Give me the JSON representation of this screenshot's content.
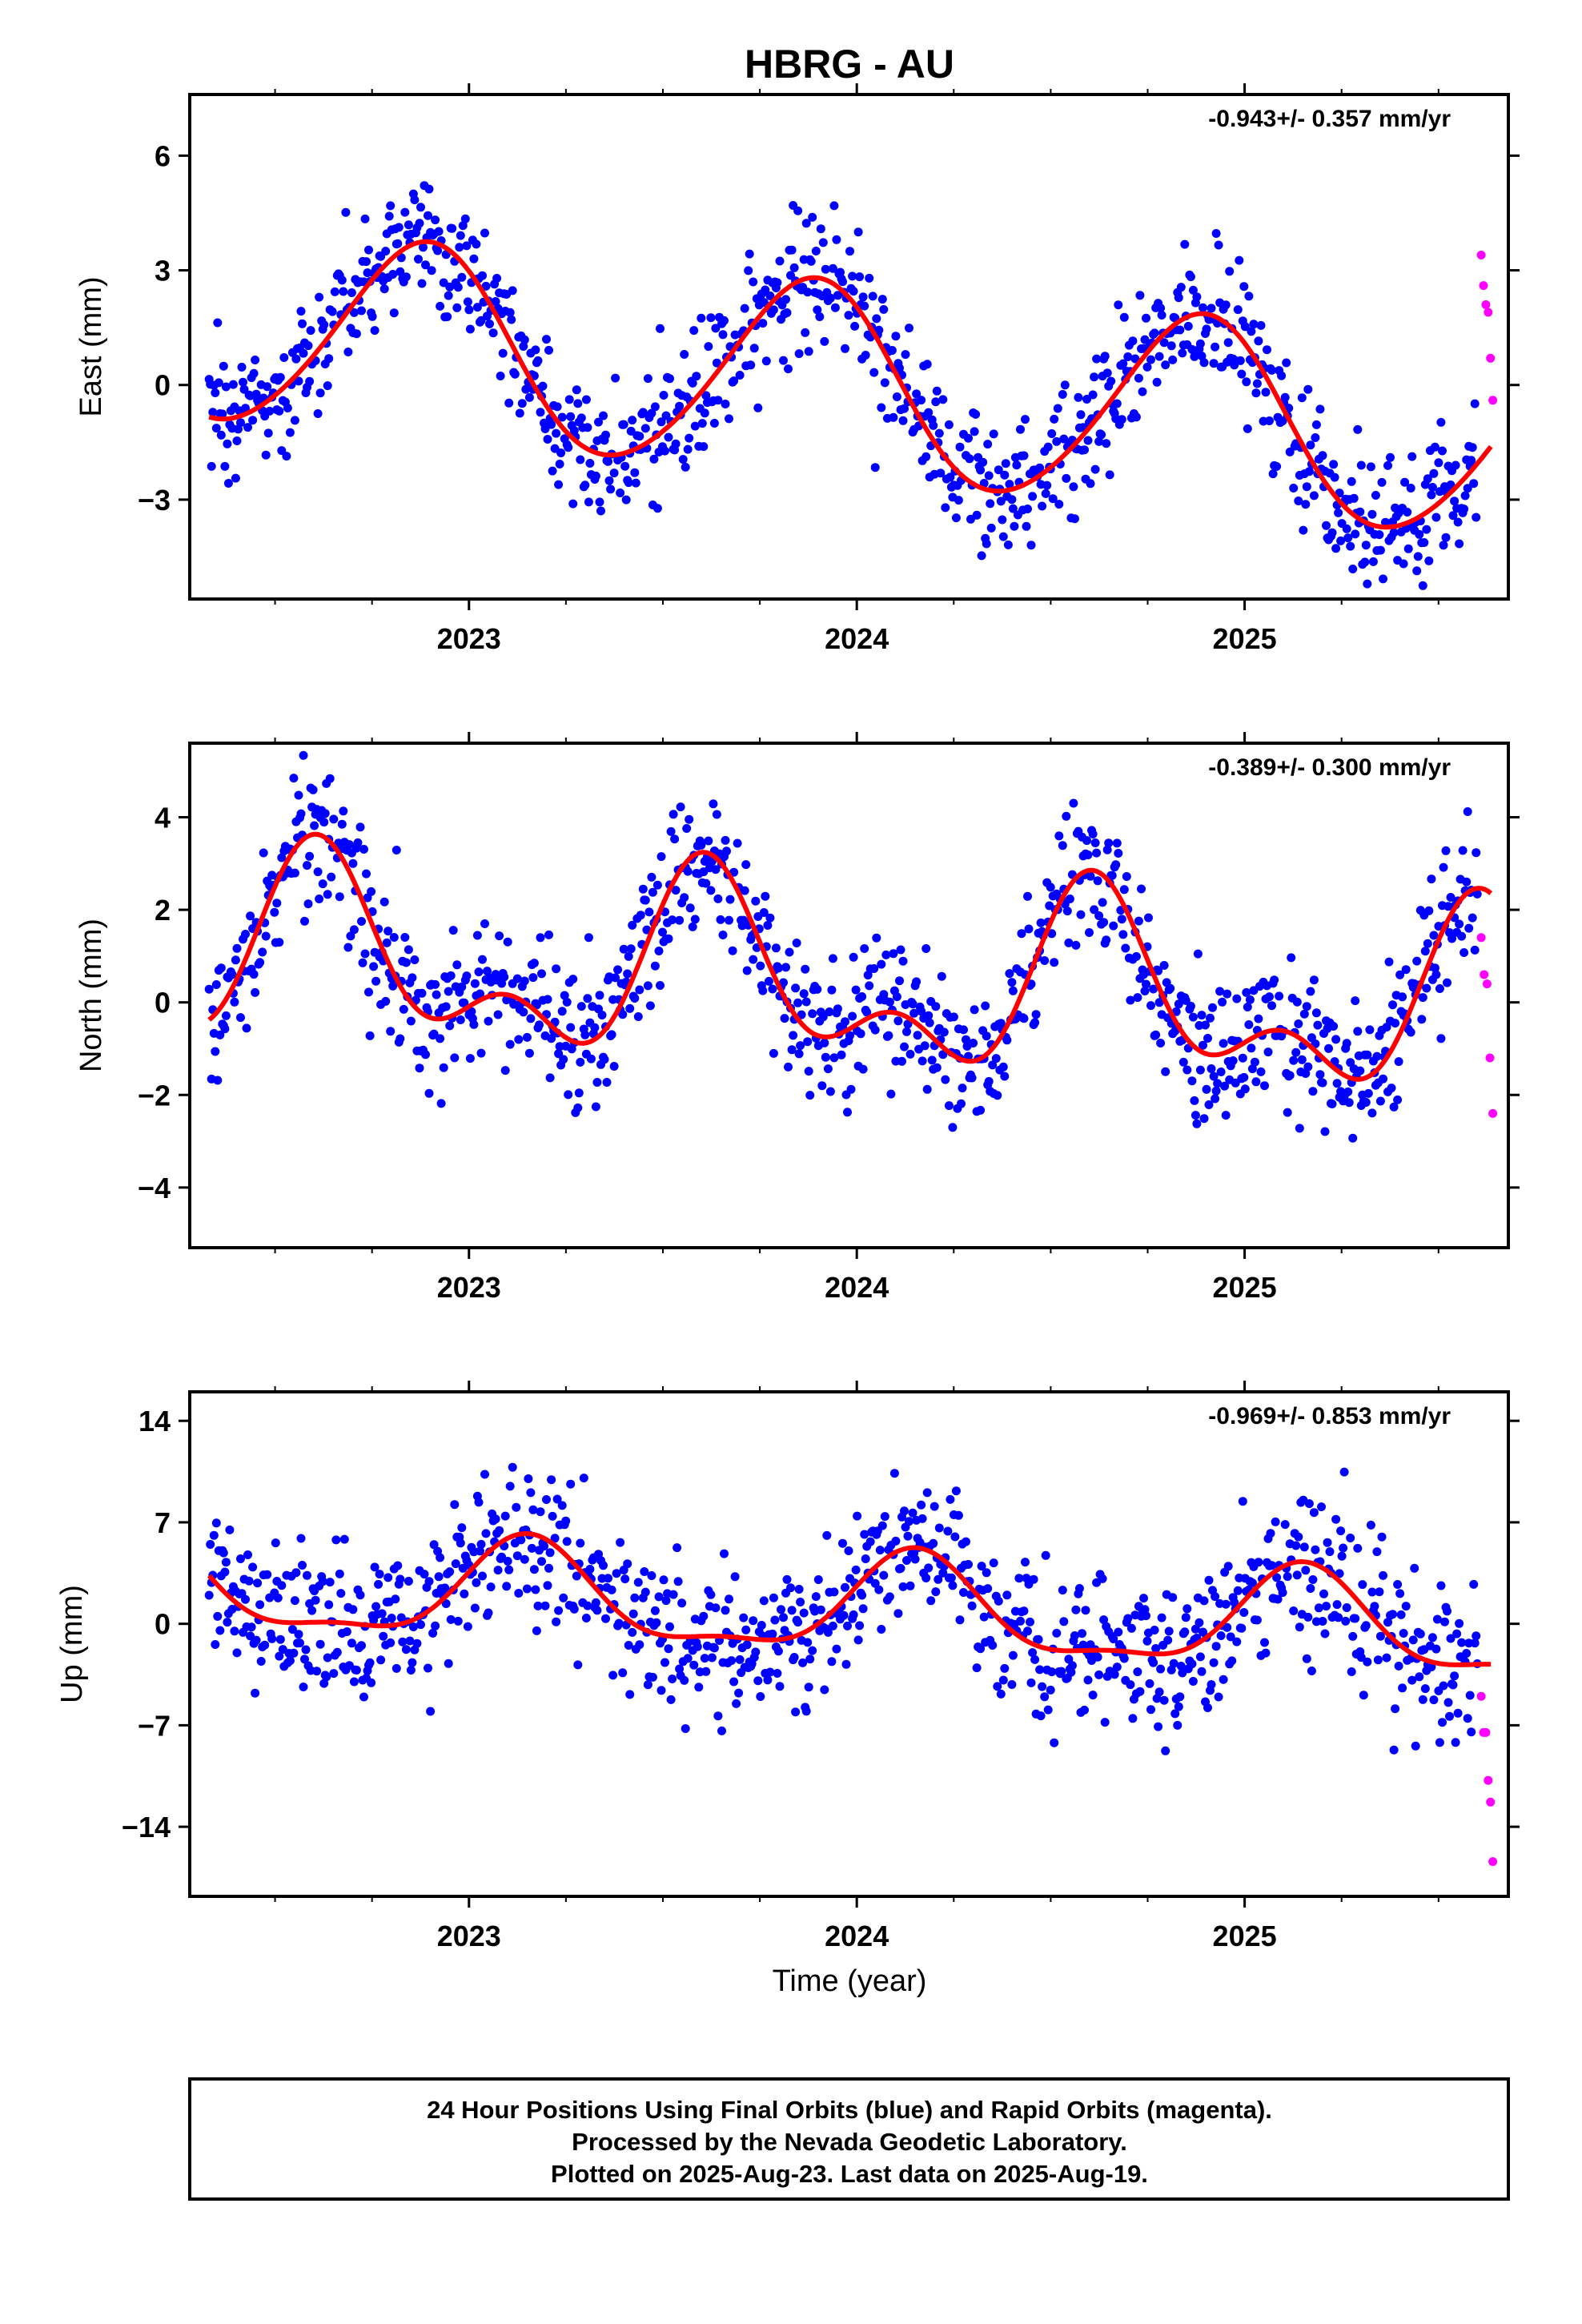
{
  "chart_data": {
    "type": "scatter",
    "title": "HBRG - AU",
    "xlabel": "Time (year)",
    "xlim": [
      2022.28,
      2025.68
    ],
    "x_major_ticks": [
      2023,
      2024,
      2025
    ],
    "x_tick_labels": [
      "2023",
      "2024",
      "2025"
    ],
    "x_minor_ticks": [
      2022.5,
      2022.75,
      2023.25,
      2023.5,
      2023.75,
      2024.25,
      2024.5,
      2024.75,
      2025.25,
      2025.5
    ],
    "legend": "24 Hour Positions Using Final Orbits (blue) and Rapid Orbits (magenta).",
    "colors": {
      "final_orbits": "#0000ff",
      "rapid_orbits": "#ff00ff",
      "model_fit": "#ff0000",
      "frame": "#000000"
    },
    "panels": [
      {
        "ylabel": "East (mm)",
        "ylim": [
          -5.6,
          7.6
        ],
        "y_ticks": [
          6,
          3,
          0,
          -3
        ],
        "y_tick_labels": [
          "6",
          "3",
          "0",
          "−3"
        ],
        "rate_text": "-0.943+/- 0.357 mm/yr",
        "trend": -0.943,
        "offset": 0.0,
        "harmonics": [
          {
            "period_years": 1.0,
            "amplitude": 2.55,
            "peak_year": 2022.88
          },
          {
            "period_years": 0.5,
            "amplitude": 0.22,
            "peak_year": 2022.95
          }
        ],
        "scatter_sigma": 0.9,
        "point_count": 1050,
        "rapid_orbit_values": [
          3.4,
          2.6,
          2.1,
          1.9,
          0.7,
          -0.4
        ],
        "rapid_orbit_x_range": [
          2025.61,
          2025.64
        ]
      },
      {
        "ylabel": "North (mm)",
        "ylim": [
          -5.3,
          5.6
        ],
        "y_ticks": [
          4,
          2,
          0,
          -2,
          -4
        ],
        "y_tick_labels": [
          "4",
          "2",
          "0",
          "−2",
          "−4"
        ],
        "rate_text": "-0.389+/- 0.300 mm/yr",
        "trend": -0.389,
        "offset": 0.4,
        "harmonics": [
          {
            "period_years": 1.0,
            "amplitude": 1.65,
            "peak_year": 2022.62
          },
          {
            "period_years": 0.5,
            "amplitude": 1.05,
            "peak_year": 2022.6
          }
        ],
        "scatter_sigma": 0.75,
        "point_count": 1050,
        "rapid_orbit_values": [
          1.4,
          0.6,
          0.4,
          -1.2,
          -2.4
        ],
        "rapid_orbit_x_range": [
          2025.61,
          2025.64
        ]
      },
      {
        "ylabel": "Up (mm)",
        "ylim": [
          -18.8,
          16.0
        ],
        "y_ticks": [
          14,
          7,
          0,
          -7,
          -14
        ],
        "y_tick_labels": [
          "14",
          "7",
          "0",
          "−7",
          "−14"
        ],
        "rate_text": "-0.969+/- 0.853 mm/yr",
        "trend": -0.969,
        "offset": 1.0,
        "harmonics": [
          {
            "period_years": 1.0,
            "amplitude": 3.3,
            "peak_year": 2023.15
          },
          {
            "period_years": 0.5,
            "amplitude": 1.1,
            "peak_year": 2023.15
          }
        ],
        "scatter_sigma": 2.6,
        "point_count": 1050,
        "rapid_orbit_values": [
          -5.0,
          -7.5,
          -7.5,
          -10.8,
          -12.3,
          -16.4
        ],
        "rapid_orbit_x_range": [
          2025.61,
          2025.64
        ]
      }
    ]
  },
  "footer": {
    "lines": [
      "24 Hour Positions Using Final Orbits (blue) and Rapid Orbits (magenta).",
      "Processed by the Nevada Geodetic Laboratory.",
      "Plotted on 2025-Aug-23. Last data on 2025-Aug-19."
    ]
  }
}
